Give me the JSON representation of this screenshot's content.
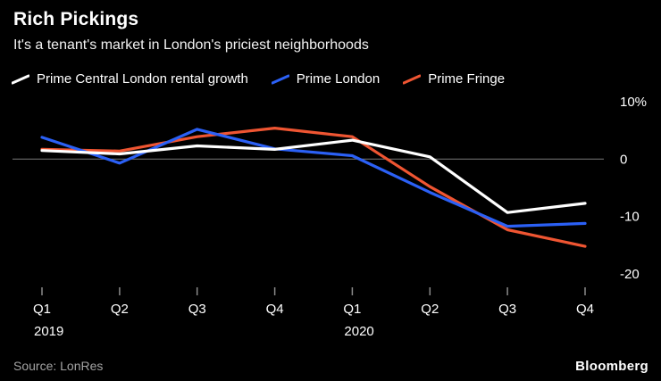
{
  "header": {
    "title": "Rich Pickings",
    "subtitle": "It's a tenant's market in London's priciest neighborhoods"
  },
  "chart_data": {
    "type": "line",
    "categories": [
      "Q1",
      "Q2",
      "Q3",
      "Q4",
      "Q1",
      "Q2",
      "Q3",
      "Q4"
    ],
    "year_labels": [
      {
        "index": 0,
        "label": "2019"
      },
      {
        "index": 4,
        "label": "2020"
      }
    ],
    "series": [
      {
        "name": "Prime Central London rental growth",
        "color": "#ffffff",
        "values": [
          1.5,
          0.9,
          2.3,
          1.7,
          3.3,
          0.4,
          -9.3,
          -7.7
        ]
      },
      {
        "name": "Prime London",
        "color": "#2b60f5",
        "values": [
          3.8,
          -0.7,
          5.2,
          1.8,
          0.6,
          -5.8,
          -11.7,
          -11.2
        ]
      },
      {
        "name": "Prime Fringe",
        "color": "#ef5532",
        "values": [
          1.7,
          1.4,
          3.9,
          5.4,
          3.9,
          -4.8,
          -12.3,
          -15.2
        ]
      }
    ],
    "ylim": [
      -20,
      10
    ],
    "y_ticks": [
      {
        "value": 10,
        "label": "10%"
      },
      {
        "value": 0,
        "label": "0"
      },
      {
        "value": -10,
        "label": "-10"
      },
      {
        "value": -20,
        "label": "-20"
      }
    ],
    "zero_line": true,
    "grid": false,
    "legend_position": "top",
    "title": "Rich Pickings",
    "xlabel": "",
    "ylabel": ""
  },
  "footer": {
    "source": "Source: LonRes",
    "brand": "Bloomberg"
  }
}
